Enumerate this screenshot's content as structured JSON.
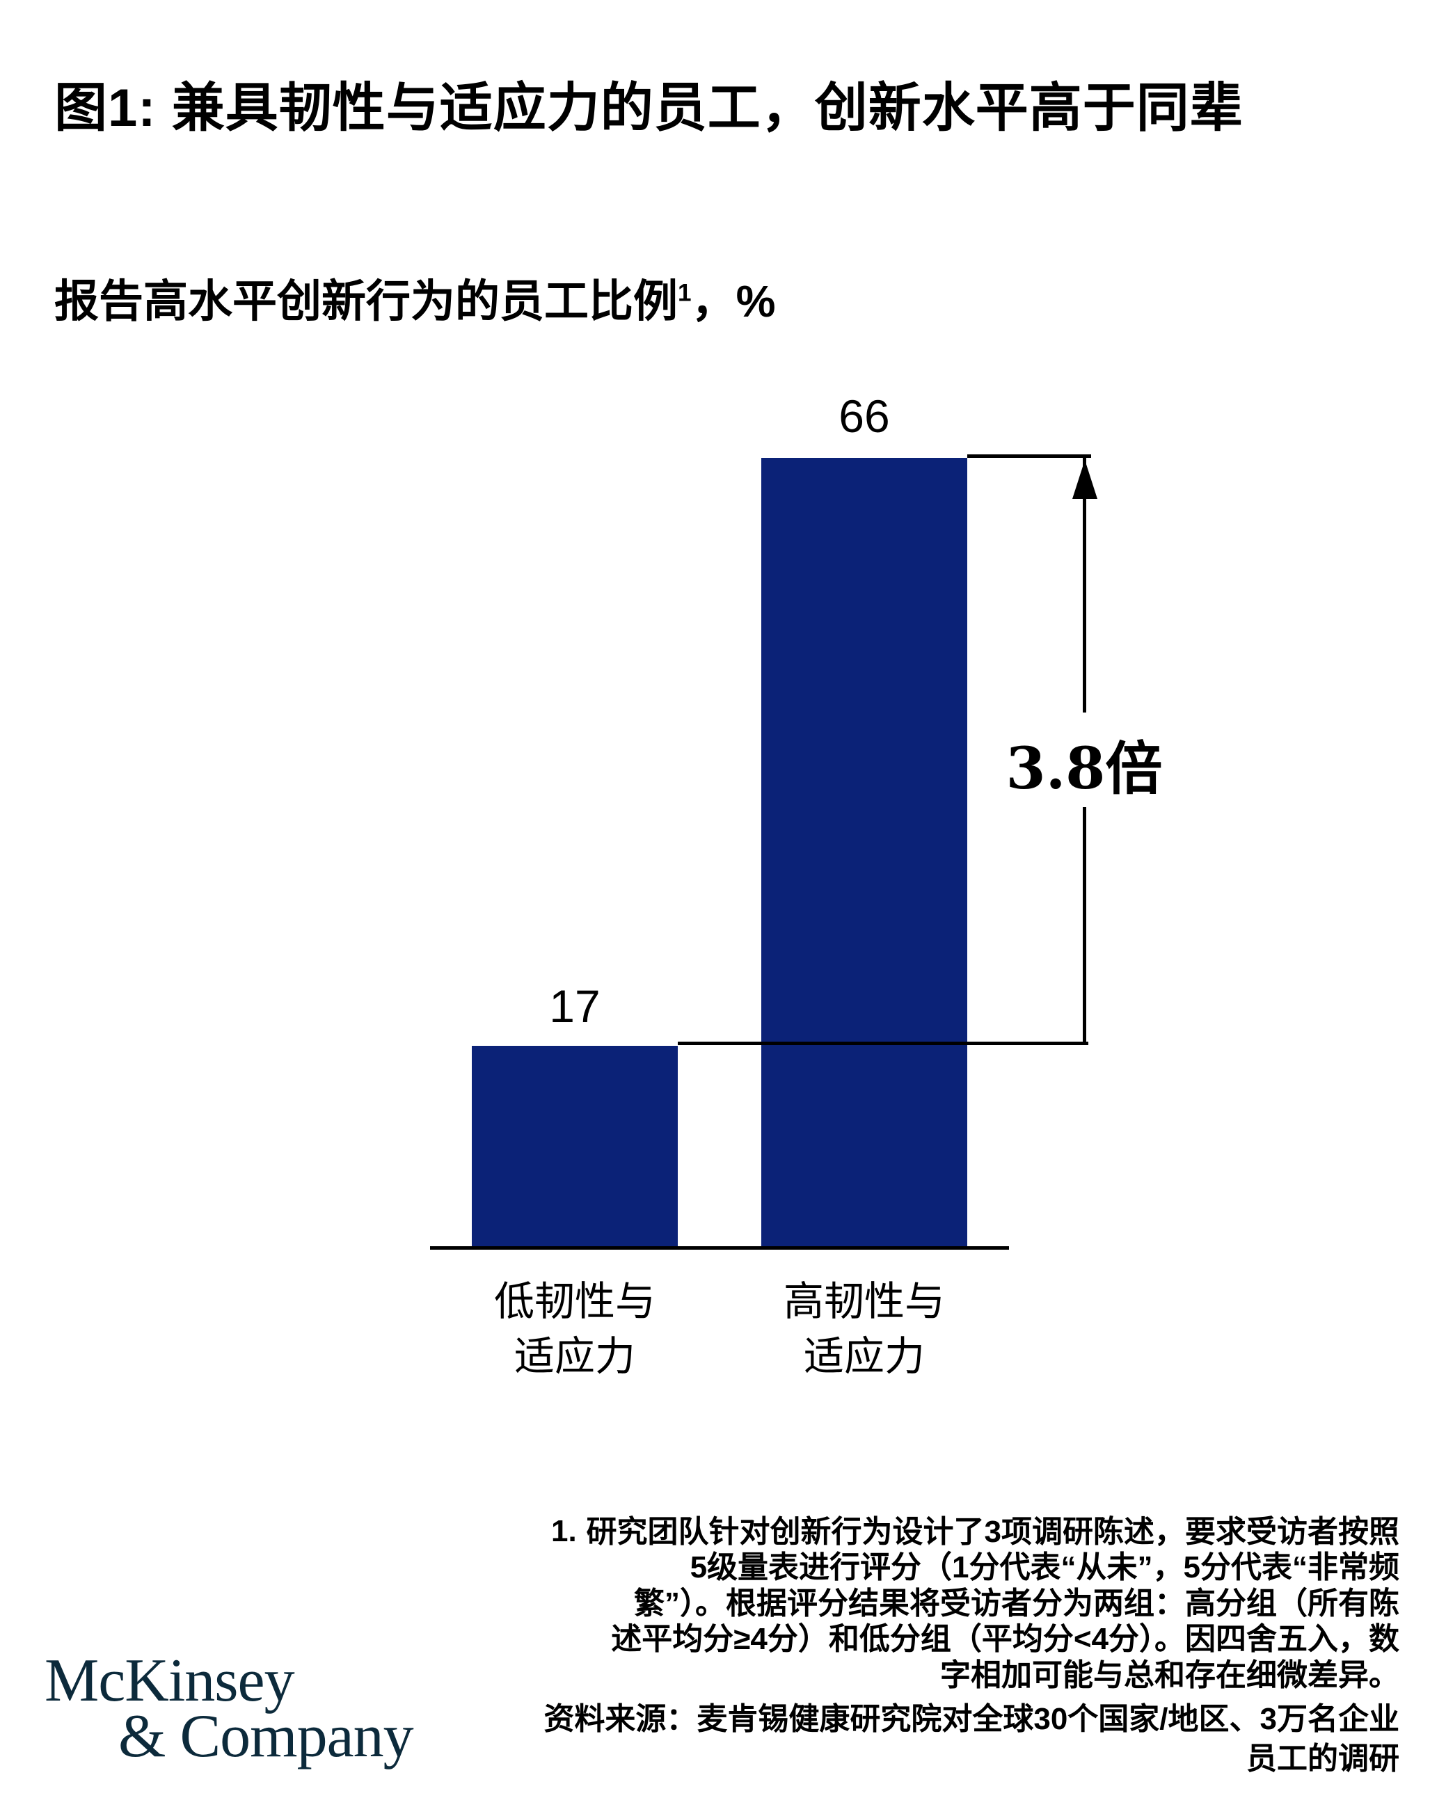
{
  "header": {
    "title": "图1: 兼具韧性与适应力的员工，创新水平高于同辈"
  },
  "subtitle": {
    "text": "报告高水平创新行为的员工比例",
    "superscript": "1",
    "tail": "，%"
  },
  "chart_data": {
    "type": "bar",
    "categories": [
      "低韧性与\n适应力",
      "高韧性与\n适应力"
    ],
    "values": [
      17,
      66
    ],
    "unit": "%",
    "annotation": "3.8倍",
    "bar_color": "#0b2277",
    "ylim": [
      0,
      70
    ],
    "grid": false,
    "legend": "none"
  },
  "footnote": {
    "marker": "1.",
    "text": "研究团队针对创新行为设计了3项调研陈述，要求受访者按照\n5级量表进行评分（1分代表“从未”，5分代表“非常频\n繁”）。根据评分结果将受访者分为两组：高分组（所有陈\n述平均分≥4分）和低分组（平均分<4分）。因四舍五入，数\n字相加可能与总和存在细微差异。"
  },
  "source": {
    "text": "资料来源：麦肯锡健康研究院对全球30个国家/地区、3万名企业\n员工的调研"
  },
  "logo": {
    "line1": "McKinsey",
    "line2": "& Company",
    "color": "#0c2a3b"
  },
  "colors": {
    "bar": "#0b2277",
    "text": "#000000",
    "background": "#ffffff"
  }
}
